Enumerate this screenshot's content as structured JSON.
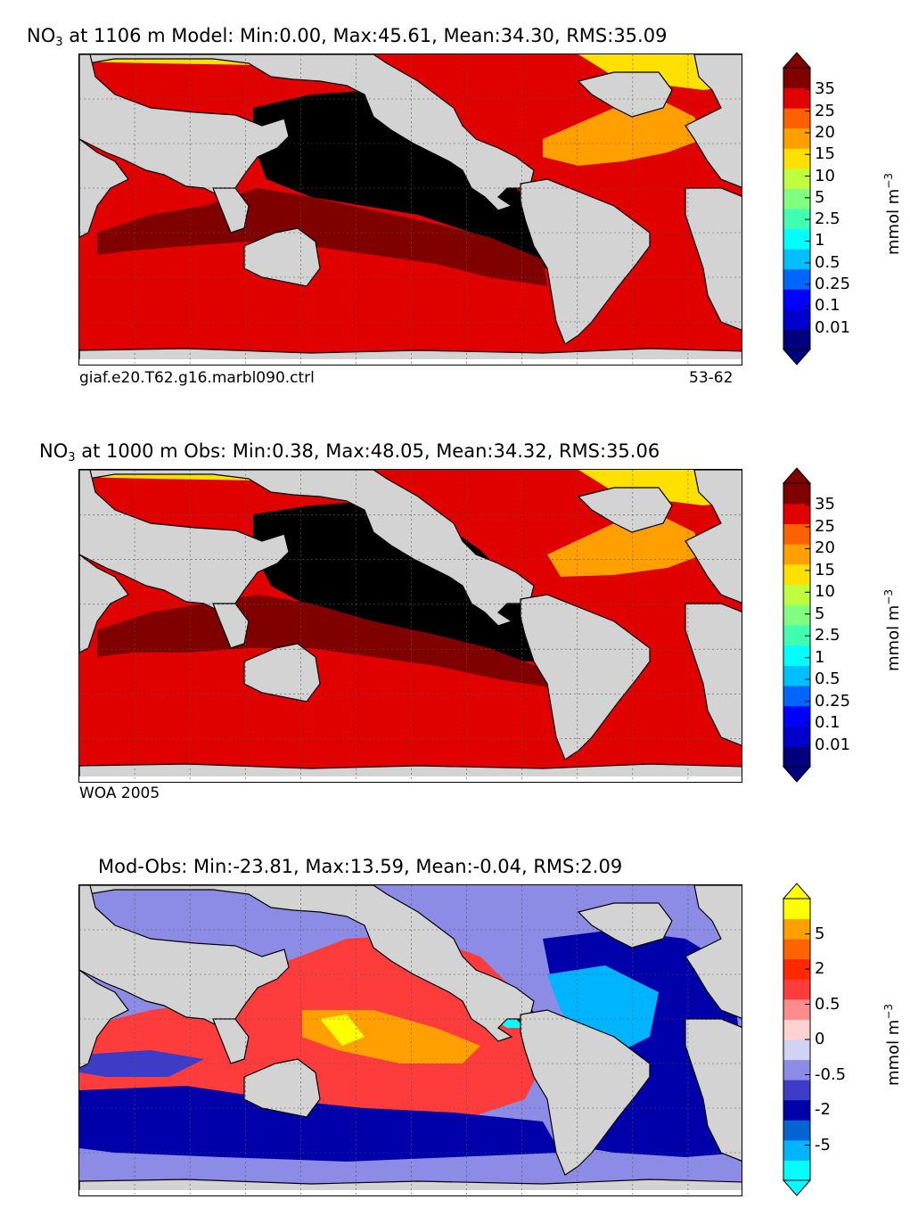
{
  "chart_data": [
    {
      "type": "heatmap",
      "title_prefix": "NO",
      "title_sub": "3",
      "title_rest": " at 1106 m Model: Min:0.00, Max:45.61, Mean:34.30, RMS:35.09",
      "stats": {
        "min": 0.0,
        "max": 45.61,
        "mean": 34.3,
        "rms": 35.09
      },
      "depth_m": 1106,
      "left_caption": "giaf.e20.T62.g16.marbl090.ctrl",
      "right_caption": "53-62",
      "colorbar": {
        "label": "mmol m",
        "label_sup": "−3",
        "ticks": [
          "0.01",
          "0.1",
          "0.25",
          "0.5",
          "1",
          "2.5",
          "5",
          "10",
          "15",
          "20",
          "25",
          "35"
        ],
        "colors": [
          "#00007f",
          "#0000cd",
          "#0000ff",
          "#0066ff",
          "#00bfff",
          "#00ffff",
          "#40ffb0",
          "#80ff80",
          "#c0ff40",
          "#ffe000",
          "#ffa000",
          "#ff6000",
          "#e00000",
          "#800000"
        ]
      }
    },
    {
      "type": "heatmap",
      "title_prefix": "NO",
      "title_sub": "3",
      "title_rest": " at 1000 m Obs: Min:0.38, Max:48.05, Mean:34.32, RMS:35.06",
      "stats": {
        "min": 0.38,
        "max": 48.05,
        "mean": 34.32,
        "rms": 35.06
      },
      "depth_m": 1000,
      "left_caption": "WOA 2005",
      "right_caption": "",
      "colorbar": {
        "label": "mmol m",
        "label_sup": "−3",
        "ticks": [
          "0.01",
          "0.1",
          "0.25",
          "0.5",
          "1",
          "2.5",
          "5",
          "10",
          "15",
          "20",
          "25",
          "35"
        ],
        "colors": [
          "#00007f",
          "#0000cd",
          "#0000ff",
          "#0066ff",
          "#00bfff",
          "#00ffff",
          "#40ffb0",
          "#80ff80",
          "#c0ff40",
          "#ffe000",
          "#ffa000",
          "#ff6000",
          "#e00000",
          "#800000"
        ]
      }
    },
    {
      "type": "heatmap",
      "title_prefix": "Mod-Obs: Min:-23.81, Max:13.59, Mean:-0.04, RMS:2.09",
      "title_sub": "",
      "title_rest": "",
      "stats": {
        "min": -23.81,
        "max": 13.59,
        "mean": -0.04,
        "rms": 2.09
      },
      "left_caption": "",
      "right_caption": "",
      "colorbar": {
        "label": "mmol m",
        "label_sup": "−3",
        "ticks": [
          "-5",
          "-2",
          "-0.5",
          "0",
          "0.5",
          "2",
          "5"
        ],
        "colors": [
          "#00ffff",
          "#00b4ff",
          "#0064d2",
          "#0000aa",
          "#3c3cc8",
          "#8c8ce6",
          "#d2d2f5",
          "#ffd2d2",
          "#ff8c8c",
          "#ff3c3c",
          "#ff2800",
          "#ff6400",
          "#ffa000",
          "#ffff00"
        ]
      }
    }
  ]
}
